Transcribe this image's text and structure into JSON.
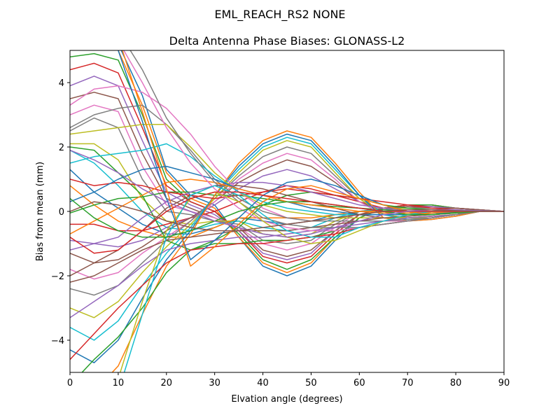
{
  "chart_data": {
    "type": "line",
    "suptitle": "EML_REACH_RS2   NONE",
    "title": "Delta Antenna Phase Biases: GLONASS-L2",
    "xlabel": "Elvation angle (degrees)",
    "ylabel": "Bias from mean (mm)",
    "xlim": [
      0,
      90
    ],
    "ylim": [
      -5,
      5
    ],
    "xticks": [
      0,
      10,
      20,
      30,
      40,
      50,
      60,
      70,
      80,
      90
    ],
    "yticks": [
      -4,
      -2,
      0,
      2,
      4
    ],
    "grid": false,
    "x": [
      0,
      5,
      10,
      15,
      20,
      25,
      30,
      35,
      40,
      45,
      50,
      55,
      60,
      65,
      70,
      75,
      80,
      85,
      90
    ],
    "colors": [
      "#1f77b4",
      "#ff7f0e",
      "#2ca02c",
      "#d62728",
      "#9467bd",
      "#8c564b",
      "#e377c2",
      "#7f7f7f",
      "#bcbd22",
      "#17becf"
    ],
    "series": [
      {
        "values": [
          6.0,
          5.6,
          5.2,
          3.6,
          1.3,
          0.5,
          0.2,
          -0.8,
          -1.7,
          -2.0,
          -1.7,
          -0.9,
          -0.2,
          0.1,
          0.2,
          0.2,
          0.1,
          0.05,
          0.0
        ]
      },
      {
        "values": [
          5.4,
          5.2,
          5.0,
          3.3,
          1.2,
          0.4,
          0.1,
          -0.8,
          -1.6,
          -1.9,
          -1.6,
          -0.8,
          -0.2,
          0.1,
          0.2,
          0.2,
          0.1,
          0.05,
          0.0
        ]
      },
      {
        "values": [
          4.8,
          4.9,
          4.7,
          3.0,
          1.0,
          0.3,
          0.0,
          -0.7,
          -1.5,
          -1.8,
          -1.5,
          -0.8,
          -0.2,
          0.1,
          0.2,
          0.2,
          0.1,
          0.05,
          0.0
        ]
      },
      {
        "values": [
          4.4,
          4.6,
          4.3,
          2.6,
          0.8,
          0.3,
          0.0,
          -0.6,
          -1.4,
          -1.6,
          -1.4,
          -0.7,
          -0.1,
          0.1,
          0.2,
          0.15,
          0.1,
          0.05,
          0.0
        ]
      },
      {
        "values": [
          3.9,
          4.2,
          3.9,
          2.2,
          0.6,
          0.2,
          -0.1,
          -0.6,
          -1.3,
          -1.5,
          -1.3,
          -0.6,
          -0.1,
          0.1,
          0.15,
          0.15,
          0.1,
          0.05,
          0.0
        ]
      },
      {
        "values": [
          3.5,
          3.7,
          3.5,
          1.8,
          0.4,
          0.1,
          -0.2,
          -0.5,
          -1.2,
          -1.4,
          -1.2,
          -0.6,
          -0.1,
          0.1,
          0.15,
          0.1,
          0.1,
          0.05,
          0.0
        ]
      },
      {
        "values": [
          3.0,
          3.3,
          3.1,
          1.4,
          0.2,
          0.0,
          -0.2,
          -0.5,
          -1.0,
          -1.2,
          -1.0,
          -0.5,
          0.0,
          0.1,
          0.1,
          0.1,
          0.05,
          0.02,
          0.0
        ]
      },
      {
        "values": [
          2.5,
          2.9,
          2.6,
          1.0,
          0.0,
          -0.1,
          -0.3,
          -0.4,
          -0.9,
          -1.0,
          -0.9,
          -0.4,
          0.0,
          0.1,
          0.1,
          0.1,
          0.05,
          0.02,
          0.0
        ]
      },
      {
        "values": [
          2.1,
          2.1,
          1.6,
          0.4,
          -0.3,
          -0.4,
          -0.3,
          -0.3,
          -0.7,
          -0.8,
          -0.7,
          -0.3,
          0.0,
          0.05,
          0.1,
          0.05,
          0.05,
          0.02,
          0.0
        ]
      },
      {
        "values": [
          1.9,
          1.5,
          0.8,
          0.0,
          -0.5,
          -0.6,
          -0.4,
          -0.3,
          -0.5,
          -0.6,
          -0.5,
          -0.2,
          0.0,
          0.05,
          0.05,
          0.05,
          0.02,
          0.01,
          0.0
        ]
      },
      {
        "values": [
          1.3,
          0.6,
          0.1,
          -0.4,
          -0.7,
          -0.7,
          -0.5,
          -0.2,
          -0.3,
          -0.4,
          -0.3,
          -0.1,
          0.0,
          0.0,
          0.05,
          0.05,
          0.02,
          0.01,
          0.0
        ]
      },
      {
        "values": [
          0.8,
          0.2,
          -0.3,
          -0.6,
          -0.8,
          -0.8,
          -0.5,
          -0.2,
          -0.2,
          -0.2,
          -0.2,
          -0.1,
          0.0,
          0.0,
          0.0,
          0.0,
          0.0,
          0.0,
          0.0
        ]
      },
      {
        "values": [
          -0.05,
          0.2,
          0.4,
          0.45,
          0.6,
          0.6,
          0.5,
          0.5,
          0.4,
          0.3,
          0.2,
          0.15,
          0.1,
          0.05,
          0.0,
          -0.05,
          -0.02,
          0.0,
          0.0
        ]
      },
      {
        "values": [
          -0.4,
          -0.4,
          -0.6,
          -0.6,
          -0.4,
          -0.2,
          0.0,
          0.3,
          0.6,
          0.8,
          0.7,
          0.5,
          0.3,
          0.1,
          0.0,
          -0.05,
          -0.05,
          0.0,
          0.0
        ]
      },
      {
        "values": [
          -0.9,
          -1.0,
          -1.1,
          -0.9,
          -0.5,
          -0.2,
          0.2,
          0.7,
          1.1,
          1.3,
          1.1,
          0.7,
          0.3,
          0.0,
          -0.1,
          -0.1,
          -0.05,
          0.0,
          0.0
        ]
      },
      {
        "values": [
          -1.3,
          -1.6,
          -1.5,
          -1.1,
          -0.6,
          -0.2,
          0.3,
          0.9,
          1.3,
          1.6,
          1.4,
          0.9,
          0.3,
          0.0,
          -0.1,
          -0.1,
          -0.05,
          0.0,
          0.0
        ]
      },
      {
        "values": [
          -1.8,
          -2.1,
          -1.9,
          -1.3,
          -0.8,
          -0.3,
          0.3,
          1.0,
          1.5,
          1.8,
          1.6,
          1.0,
          0.3,
          -0.1,
          -0.2,
          -0.15,
          -0.1,
          0.0,
          0.0
        ]
      },
      {
        "values": [
          -2.4,
          -2.6,
          -2.3,
          -1.6,
          -0.9,
          -0.3,
          0.4,
          1.1,
          1.7,
          2.0,
          1.8,
          1.1,
          0.4,
          -0.1,
          -0.2,
          -0.2,
          -0.1,
          0.0,
          0.0
        ]
      },
      {
        "values": [
          -3.0,
          -3.3,
          -2.8,
          -1.9,
          -1.1,
          -0.4,
          0.4,
          1.2,
          1.9,
          2.2,
          2.0,
          1.2,
          0.4,
          -0.1,
          -0.2,
          -0.2,
          -0.1,
          0.0,
          0.0
        ]
      },
      {
        "values": [
          -3.6,
          -4.0,
          -3.4,
          -2.3,
          -1.3,
          -0.5,
          0.5,
          1.3,
          2.0,
          2.3,
          2.1,
          1.3,
          0.5,
          -0.1,
          -0.25,
          -0.2,
          -0.1,
          0.0,
          0.0
        ]
      },
      {
        "values": [
          -4.3,
          -4.7,
          -4.0,
          -2.7,
          -1.5,
          -0.6,
          0.5,
          1.4,
          2.1,
          2.4,
          2.2,
          1.4,
          0.5,
          -0.2,
          -0.3,
          -0.25,
          -0.15,
          0.0,
          0.0
        ]
      },
      {
        "values": [
          -5.2,
          -5.6,
          -4.8,
          -3.2,
          -1.7,
          -0.7,
          0.5,
          1.5,
          2.2,
          2.5,
          2.3,
          1.5,
          0.6,
          -0.2,
          -0.3,
          -0.25,
          -0.15,
          0.0,
          0.0
        ]
      },
      {
        "values": [
          2.0,
          1.9,
          1.2,
          0.5,
          -0.9,
          -1.2,
          -0.9,
          -0.5,
          0.2,
          0.5,
          0.6,
          0.5,
          0.4,
          0.2,
          0.1,
          0.05,
          0.02,
          0.0,
          0.0
        ]
      },
      {
        "values": [
          1.0,
          0.8,
          0.9,
          0.8,
          0.6,
          0.5,
          0.4,
          0.5,
          0.6,
          0.7,
          0.6,
          0.5,
          0.4,
          0.3,
          0.2,
          0.1,
          0.05,
          0.0,
          0.0
        ]
      },
      {
        "values": [
          -1.2,
          -1.0,
          -0.8,
          -0.2,
          0.3,
          0.6,
          0.8,
          0.9,
          0.9,
          0.8,
          0.6,
          0.4,
          0.2,
          0.1,
          0.0,
          -0.05,
          -0.05,
          0.0,
          0.0
        ]
      },
      {
        "values": [
          -2.0,
          -1.6,
          -1.2,
          -0.6,
          0.1,
          0.5,
          0.8,
          0.8,
          0.7,
          0.5,
          0.3,
          0.1,
          -0.1,
          -0.2,
          -0.2,
          -0.15,
          -0.1,
          0.0,
          0.0
        ]
      },
      {
        "values": [
          3.3,
          3.8,
          3.9,
          3.7,
          3.2,
          2.4,
          1.4,
          0.6,
          0.1,
          -0.2,
          -0.3,
          -0.3,
          -0.3,
          -0.3,
          -0.3,
          -0.2,
          -0.1,
          0.0,
          0.0
        ]
      },
      {
        "values": [
          2.6,
          3.0,
          3.2,
          3.3,
          2.7,
          1.9,
          1.0,
          0.4,
          0.0,
          -0.2,
          -0.3,
          -0.3,
          -0.3,
          -0.3,
          -0.25,
          -0.2,
          -0.1,
          0.0,
          0.0
        ]
      },
      {
        "values": [
          2.4,
          2.5,
          2.6,
          2.7,
          2.7,
          2.0,
          1.2,
          0.6,
          0.2,
          0.0,
          -0.1,
          -0.2,
          -0.2,
          -0.2,
          -0.2,
          -0.15,
          -0.1,
          0.0,
          0.0
        ]
      },
      {
        "values": [
          1.5,
          1.7,
          1.8,
          1.9,
          2.1,
          1.7,
          1.1,
          0.6,
          0.3,
          0.1,
          0.0,
          -0.1,
          -0.1,
          -0.1,
          -0.1,
          -0.1,
          -0.05,
          0.0,
          0.0
        ]
      },
      {
        "values": [
          0.3,
          0.6,
          1.0,
          1.3,
          1.4,
          1.2,
          1.0,
          0.7,
          0.5,
          0.3,
          0.1,
          0.0,
          -0.1,
          -0.1,
          -0.1,
          -0.05,
          -0.05,
          0.0,
          0.0
        ]
      },
      {
        "values": [
          -0.7,
          -0.3,
          0.1,
          0.5,
          0.9,
          1.0,
          0.9,
          0.7,
          0.5,
          0.3,
          0.2,
          0.1,
          0.0,
          -0.05,
          -0.05,
          -0.05,
          0.0,
          0.0,
          0.0
        ]
      },
      {
        "values": [
          -5.4,
          -4.6,
          -3.9,
          -3.0,
          -1.9,
          -1.2,
          -1.0,
          -1.0,
          -0.9,
          -0.9,
          -0.8,
          -0.6,
          -0.5,
          -0.4,
          -0.3,
          -0.2,
          -0.1,
          0.0,
          0.0
        ]
      },
      {
        "values": [
          -4.6,
          -3.8,
          -3.0,
          -2.3,
          -1.6,
          -1.2,
          -1.1,
          -1.0,
          -1.0,
          -0.9,
          -0.8,
          -0.7,
          -0.5,
          -0.4,
          -0.3,
          -0.2,
          -0.1,
          0.0,
          0.0
        ]
      },
      {
        "values": [
          -3.3,
          -2.8,
          -2.3,
          -1.7,
          -1.2,
          -1.0,
          -0.9,
          -0.8,
          -0.8,
          -0.7,
          -0.6,
          -0.5,
          -0.4,
          -0.3,
          -0.2,
          -0.15,
          -0.1,
          0.0,
          0.0
        ]
      },
      {
        "values": [
          -2.2,
          -2.0,
          -1.6,
          -1.2,
          -0.9,
          -0.8,
          -0.7,
          -0.6,
          -0.6,
          -0.6,
          -0.5,
          -0.4,
          -0.3,
          -0.2,
          -0.15,
          -0.1,
          -0.05,
          0.0,
          0.0
        ]
      },
      {
        "values": [
          5.6,
          5.8,
          5.3,
          4.0,
          2.6,
          1.5,
          0.7,
          0.1,
          -0.3,
          -0.5,
          -0.6,
          -0.6,
          -0.5,
          -0.4,
          -0.3,
          -0.2,
          -0.1,
          0.0,
          0.0
        ]
      },
      {
        "values": [
          6.0,
          6.0,
          5.6,
          4.4,
          2.9,
          1.8,
          0.9,
          0.3,
          -0.2,
          -0.4,
          -0.5,
          -0.5,
          -0.5,
          -0.4,
          -0.3,
          -0.2,
          -0.1,
          0.0,
          0.0
        ]
      },
      {
        "values": [
          -6.0,
          -6.0,
          -5.2,
          -2.8,
          -0.6,
          0.4,
          0.6,
          0.3,
          -0.3,
          -0.8,
          -1.0,
          -0.9,
          -0.6,
          -0.3,
          -0.1,
          0.0,
          0.0,
          0.0,
          0.0
        ]
      },
      {
        "values": [
          -6.0,
          -6.0,
          -5.6,
          -3.2,
          -0.8,
          0.5,
          0.8,
          0.5,
          -0.1,
          -0.6,
          -0.8,
          -0.8,
          -0.5,
          -0.3,
          -0.1,
          0.0,
          0.0,
          0.0,
          0.0
        ]
      },
      {
        "values": [
          6.0,
          6.0,
          5.0,
          2.8,
          0.4,
          -1.5,
          -0.9,
          -0.2,
          0.5,
          0.9,
          1.0,
          0.8,
          0.5,
          0.2,
          0.0,
          -0.1,
          -0.05,
          0.0,
          0.0
        ]
      },
      {
        "values": [
          6.0,
          6.0,
          5.4,
          3.1,
          0.7,
          -1.7,
          -1.1,
          -0.4,
          0.3,
          0.7,
          0.8,
          0.6,
          0.4,
          0.2,
          0.0,
          -0.1,
          -0.05,
          0.0,
          0.0
        ]
      },
      {
        "values": [
          0.4,
          -0.2,
          -0.6,
          -0.8,
          -0.8,
          -0.6,
          -0.3,
          0.0,
          0.2,
          0.3,
          0.3,
          0.2,
          0.1,
          0.0,
          -0.1,
          -0.1,
          -0.05,
          0.0,
          0.0
        ]
      },
      {
        "values": [
          -0.8,
          -1.3,
          -1.2,
          -0.6,
          0.0,
          0.4,
          0.6,
          0.6,
          0.5,
          0.4,
          0.3,
          0.2,
          0.1,
          0.0,
          0.0,
          0.0,
          0.0,
          0.0,
          0.0
        ]
      },
      {
        "values": [
          1.9,
          1.6,
          1.2,
          0.7,
          0.3,
          0.0,
          -0.3,
          -0.5,
          -0.7,
          -0.8,
          -0.7,
          -0.5,
          -0.3,
          -0.1,
          0.0,
          0.05,
          0.05,
          0.02,
          0.0
        ]
      },
      {
        "values": [
          0.0,
          0.3,
          0.2,
          0.0,
          -0.3,
          -0.5,
          -0.6,
          -0.6,
          -0.5,
          -0.4,
          -0.3,
          -0.2,
          -0.1,
          0.0,
          0.05,
          0.05,
          0.02,
          0.0,
          0.0
        ]
      }
    ]
  }
}
